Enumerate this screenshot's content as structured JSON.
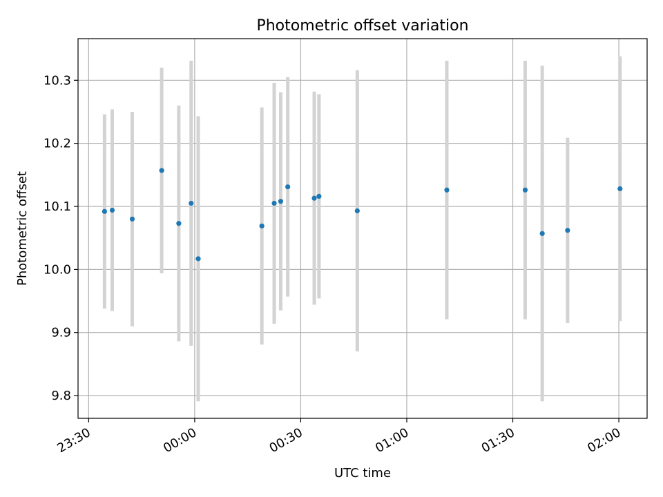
{
  "chart_data": {
    "type": "scatter",
    "title": "Photometric offset variation",
    "xlabel": "UTC time",
    "ylabel": "Photometric offset",
    "x_axis": "time",
    "xlim": [
      "23:27",
      "02:08"
    ],
    "ylim": [
      9.764,
      10.366
    ],
    "grid": true,
    "x_ticks": [
      "23:30",
      "00:00",
      "00:30",
      "01:00",
      "01:30",
      "02:00"
    ],
    "y_ticks": [
      "9.8",
      "9.9",
      "10.0",
      "10.1",
      "10.2",
      "10.3"
    ],
    "colors": {
      "point": "#1f77b4",
      "errorbar": "#d3d3d3",
      "grid": "#b0b0b0"
    },
    "series": [
      {
        "points": [
          {
            "t": "23:34:30",
            "y": 10.092,
            "err": 0.154
          },
          {
            "t": "23:36:40",
            "y": 10.094,
            "err": 0.16
          },
          {
            "t": "23:42:20",
            "y": 10.08,
            "err": 0.17
          },
          {
            "t": "23:50:40",
            "y": 10.157,
            "err": 0.163
          },
          {
            "t": "23:55:30",
            "y": 10.073,
            "err": 0.187
          },
          {
            "t": "23:59:00",
            "y": 10.105,
            "err": 0.226
          },
          {
            "t": "00:01:00",
            "y": 10.017,
            "err": 0.226
          },
          {
            "t": "00:19:00",
            "y": 10.069,
            "err": 0.188
          },
          {
            "t": "00:22:30",
            "y": 10.105,
            "err": 0.191
          },
          {
            "t": "00:24:20",
            "y": 10.108,
            "err": 0.173
          },
          {
            "t": "00:26:20",
            "y": 10.131,
            "err": 0.174
          },
          {
            "t": "00:33:50",
            "y": 10.113,
            "err": 0.169
          },
          {
            "t": "00:35:10",
            "y": 10.116,
            "err": 0.162
          },
          {
            "t": "00:46:00",
            "y": 10.093,
            "err": 0.223
          },
          {
            "t": "01:11:20",
            "y": 10.126,
            "err": 0.205
          },
          {
            "t": "01:33:30",
            "y": 10.126,
            "err": 0.205
          },
          {
            "t": "01:38:20",
            "y": 10.057,
            "err": 0.266
          },
          {
            "t": "01:45:30",
            "y": 10.062,
            "err": 0.147
          },
          {
            "t": "02:00:20",
            "y": 10.128,
            "err": 0.21
          }
        ]
      }
    ]
  }
}
